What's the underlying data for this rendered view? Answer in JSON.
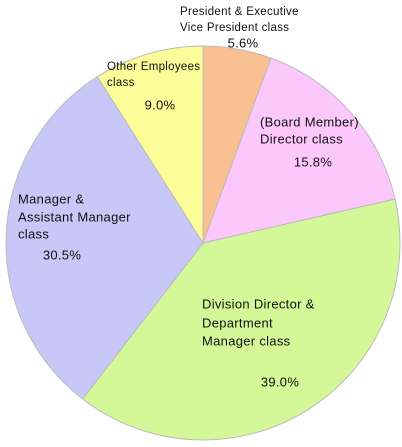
{
  "chart_data": {
    "type": "pie",
    "categories": [
      [
        "President & Executive",
        "Vice President class"
      ],
      [
        "(Board Member)",
        "Director class"
      ],
      [
        "Division Director &",
        "Department",
        "Manager class"
      ],
      [
        "Manager &",
        "Assistant Manager",
        "class"
      ],
      [
        "Other Employees",
        "class"
      ]
    ],
    "values": [
      5.6,
      15.8,
      39.0,
      30.5,
      9.0
    ],
    "value_labels": [
      "5.6%",
      "15.8%",
      "39.0%",
      "30.5%",
      "9.0%"
    ],
    "colors": [
      "#f8c090",
      "#fcc8fc",
      "#d4f898",
      "#c8c8f8",
      "#fcfc98"
    ]
  }
}
